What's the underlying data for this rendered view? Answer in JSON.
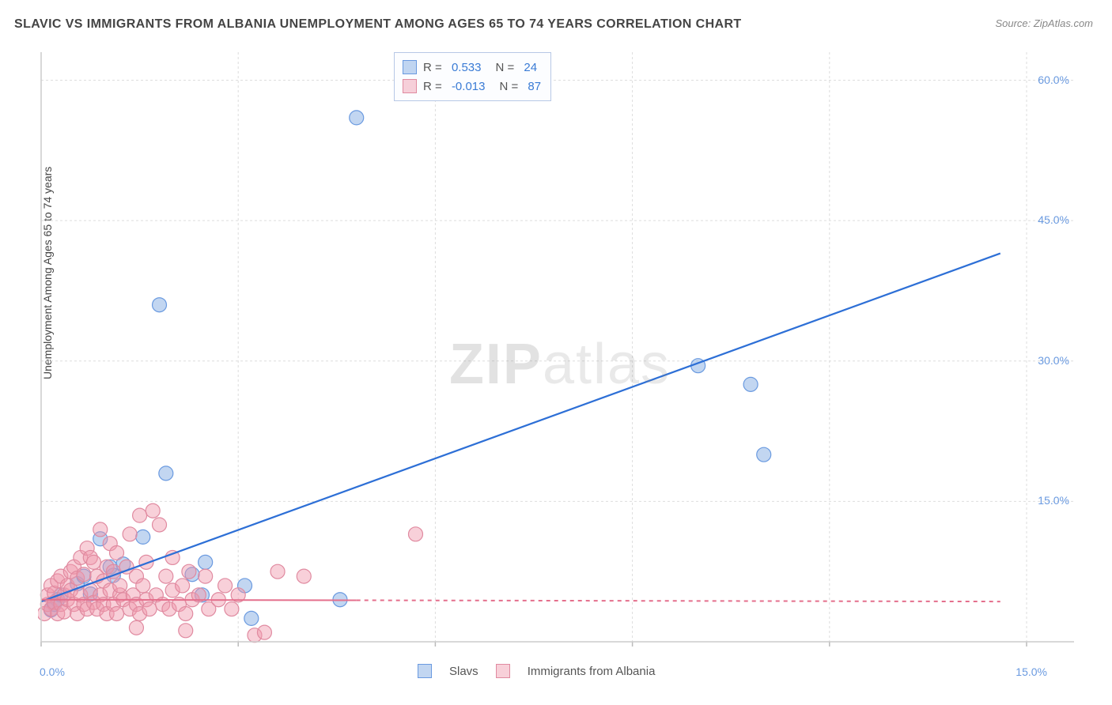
{
  "title": "SLAVIC VS IMMIGRANTS FROM ALBANIA UNEMPLOYMENT AMONG AGES 65 TO 74 YEARS CORRELATION CHART",
  "source": "Source: ZipAtlas.com",
  "ylabel": "Unemployment Among Ages 65 to 74 years",
  "watermark_bold": "ZIP",
  "watermark_rest": "atlas",
  "chart": {
    "type": "scatter",
    "background_color": "#ffffff",
    "grid_color": "#dddddd",
    "axis_color": "#cccccc",
    "xlim": [
      0,
      15
    ],
    "ylim": [
      0,
      63
    ],
    "xticks": [
      0,
      3,
      6,
      9,
      12,
      15
    ],
    "xtick_labels": [
      "0.0%",
      "",
      "",
      "",
      "",
      "15.0%"
    ],
    "yticks": [
      15,
      30,
      45,
      60
    ],
    "ytick_labels": [
      "15.0%",
      "30.0%",
      "45.0%",
      "60.0%"
    ],
    "marker_radius": 9,
    "marker_opacity": 0.55,
    "label_fontsize": 14,
    "label_color": "#6a9ae0",
    "series": [
      {
        "name": "Slavs",
        "color_fill": "rgba(120,165,225,0.45)",
        "color_stroke": "#6a9ae0",
        "R": "0.533",
        "N": "24",
        "trend": {
          "x1": 0,
          "y1": 4.3,
          "x2": 14.6,
          "y2": 41.5,
          "color": "#2d6fd6",
          "width": 2.2,
          "dash_after_x": null
        },
        "points": [
          [
            0.15,
            3.4
          ],
          [
            0.2,
            4.0
          ],
          [
            0.25,
            4.5
          ],
          [
            0.3,
            5.0
          ],
          [
            0.55,
            6.2
          ],
          [
            0.65,
            7.0
          ],
          [
            0.9,
            11.0
          ],
          [
            1.05,
            8.0
          ],
          [
            1.1,
            7.1
          ],
          [
            1.55,
            11.2
          ],
          [
            1.8,
            36.0
          ],
          [
            1.9,
            18.0
          ],
          [
            2.5,
            8.5
          ],
          [
            3.1,
            6.0
          ],
          [
            3.2,
            2.5
          ],
          [
            4.8,
            56.0
          ],
          [
            2.45,
            5.0
          ],
          [
            4.55,
            4.5
          ],
          [
            2.3,
            7.2
          ],
          [
            10.0,
            29.5
          ],
          [
            10.8,
            27.5
          ],
          [
            11.0,
            20.0
          ],
          [
            0.75,
            5.1
          ],
          [
            1.25,
            8.3
          ]
        ]
      },
      {
        "name": "Immigrants from Albania",
        "color_fill": "rgba(240,150,170,0.45)",
        "color_stroke": "#e08aa0",
        "R": "-0.013",
        "N": "87",
        "trend": {
          "x1": 0,
          "y1": 4.5,
          "x2": 14.6,
          "y2": 4.3,
          "color": "#e46f8c",
          "width": 2.0,
          "dash_after_x": 4.8
        },
        "points": [
          [
            0.05,
            3.0
          ],
          [
            0.1,
            4.0
          ],
          [
            0.1,
            5.0
          ],
          [
            0.15,
            3.5
          ],
          [
            0.15,
            6.0
          ],
          [
            0.2,
            4.2
          ],
          [
            0.2,
            5.2
          ],
          [
            0.25,
            3.0
          ],
          [
            0.25,
            6.5
          ],
          [
            0.3,
            4.0
          ],
          [
            0.3,
            7.0
          ],
          [
            0.35,
            5.0
          ],
          [
            0.35,
            3.2
          ],
          [
            0.4,
            4.5
          ],
          [
            0.4,
            6.0
          ],
          [
            0.45,
            5.5
          ],
          [
            0.45,
            7.5
          ],
          [
            0.5,
            4.0
          ],
          [
            0.5,
            8.0
          ],
          [
            0.55,
            3.0
          ],
          [
            0.55,
            6.8
          ],
          [
            0.6,
            5.0
          ],
          [
            0.6,
            9.0
          ],
          [
            0.65,
            4.0
          ],
          [
            0.65,
            7.2
          ],
          [
            0.7,
            3.5
          ],
          [
            0.7,
            10.0
          ],
          [
            0.75,
            9.0
          ],
          [
            0.75,
            5.5
          ],
          [
            0.8,
            4.2
          ],
          [
            0.8,
            8.5
          ],
          [
            0.85,
            3.5
          ],
          [
            0.85,
            7.0
          ],
          [
            0.9,
            5.0
          ],
          [
            0.9,
            12.0
          ],
          [
            0.95,
            4.0
          ],
          [
            0.95,
            6.5
          ],
          [
            1.0,
            3.0
          ],
          [
            1.0,
            8.0
          ],
          [
            1.05,
            5.5
          ],
          [
            1.05,
            10.5
          ],
          [
            1.1,
            4.0
          ],
          [
            1.1,
            7.5
          ],
          [
            1.15,
            3.0
          ],
          [
            1.15,
            9.5
          ],
          [
            1.2,
            5.0
          ],
          [
            1.2,
            6.0
          ],
          [
            1.25,
            4.5
          ],
          [
            1.3,
            8.0
          ],
          [
            1.35,
            3.5
          ],
          [
            1.35,
            11.5
          ],
          [
            1.4,
            5.0
          ],
          [
            1.45,
            4.0
          ],
          [
            1.45,
            7.0
          ],
          [
            1.5,
            3.0
          ],
          [
            1.5,
            13.5
          ],
          [
            1.55,
            6.0
          ],
          [
            1.6,
            4.5
          ],
          [
            1.6,
            8.5
          ],
          [
            1.65,
            3.5
          ],
          [
            1.7,
            14.0
          ],
          [
            1.75,
            5.0
          ],
          [
            1.8,
            12.5
          ],
          [
            1.85,
            4.0
          ],
          [
            1.9,
            7.0
          ],
          [
            1.95,
            3.5
          ],
          [
            2.0,
            5.5
          ],
          [
            2.0,
            9.0
          ],
          [
            2.1,
            4.0
          ],
          [
            2.15,
            6.0
          ],
          [
            2.2,
            3.0
          ],
          [
            2.25,
            7.5
          ],
          [
            2.3,
            4.5
          ],
          [
            2.4,
            5.0
          ],
          [
            2.5,
            7.0
          ],
          [
            2.55,
            3.5
          ],
          [
            2.7,
            4.5
          ],
          [
            2.8,
            6.0
          ],
          [
            2.9,
            3.5
          ],
          [
            3.0,
            5.0
          ],
          [
            3.25,
            0.7
          ],
          [
            3.4,
            1.0
          ],
          [
            3.6,
            7.5
          ],
          [
            4.0,
            7.0
          ],
          [
            5.7,
            11.5
          ],
          [
            1.45,
            1.5
          ],
          [
            2.2,
            1.2
          ]
        ]
      }
    ],
    "legend_bottom": [
      {
        "swatch": "blue",
        "label": "Slavs"
      },
      {
        "swatch": "pink",
        "label": "Immigrants from Albania"
      }
    ]
  }
}
